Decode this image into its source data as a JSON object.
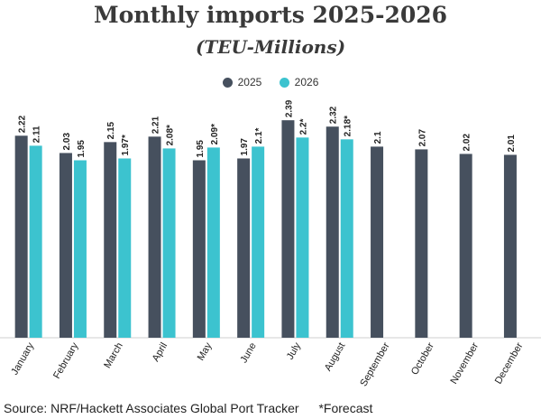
{
  "chart_data": {
    "type": "bar",
    "title": "Monthly imports 2025-2026",
    "subtitle": "(TEU-Millions)",
    "categories": [
      "January",
      "February",
      "March",
      "April",
      "May",
      "June",
      "July",
      "August",
      "September",
      "October",
      "November",
      "December"
    ],
    "series": [
      {
        "name": "2025",
        "color": "#46505e",
        "values": [
          2.22,
          2.03,
          2.15,
          2.21,
          1.95,
          1.97,
          2.39,
          2.32,
          2.1,
          2.07,
          2.02,
          2.01
        ],
        "labels": [
          "2.22",
          "2.03",
          "2.15",
          "2.21",
          "1.95",
          "1.97",
          "2.39",
          "2.32",
          "2.1",
          "2.07",
          "2.02",
          "2.01"
        ]
      },
      {
        "name": "2026",
        "color": "#3cc3cf",
        "values": [
          2.11,
          1.95,
          1.97,
          2.08,
          2.09,
          2.1,
          2.2,
          2.18,
          null,
          null,
          null,
          null
        ],
        "labels": [
          "2.11",
          "1.95",
          "1.97*",
          "2.08*",
          "2.09*",
          "2.1*",
          "2.2*",
          "2.18*",
          null,
          null,
          null,
          null
        ]
      }
    ],
    "ylim": [
      0,
      2.6
    ],
    "grid": false,
    "legend_placement": "top-center"
  },
  "footer": {
    "source": "Source: NRF/Hackett Associates Global Port Tracker",
    "note": "*Forecast"
  }
}
